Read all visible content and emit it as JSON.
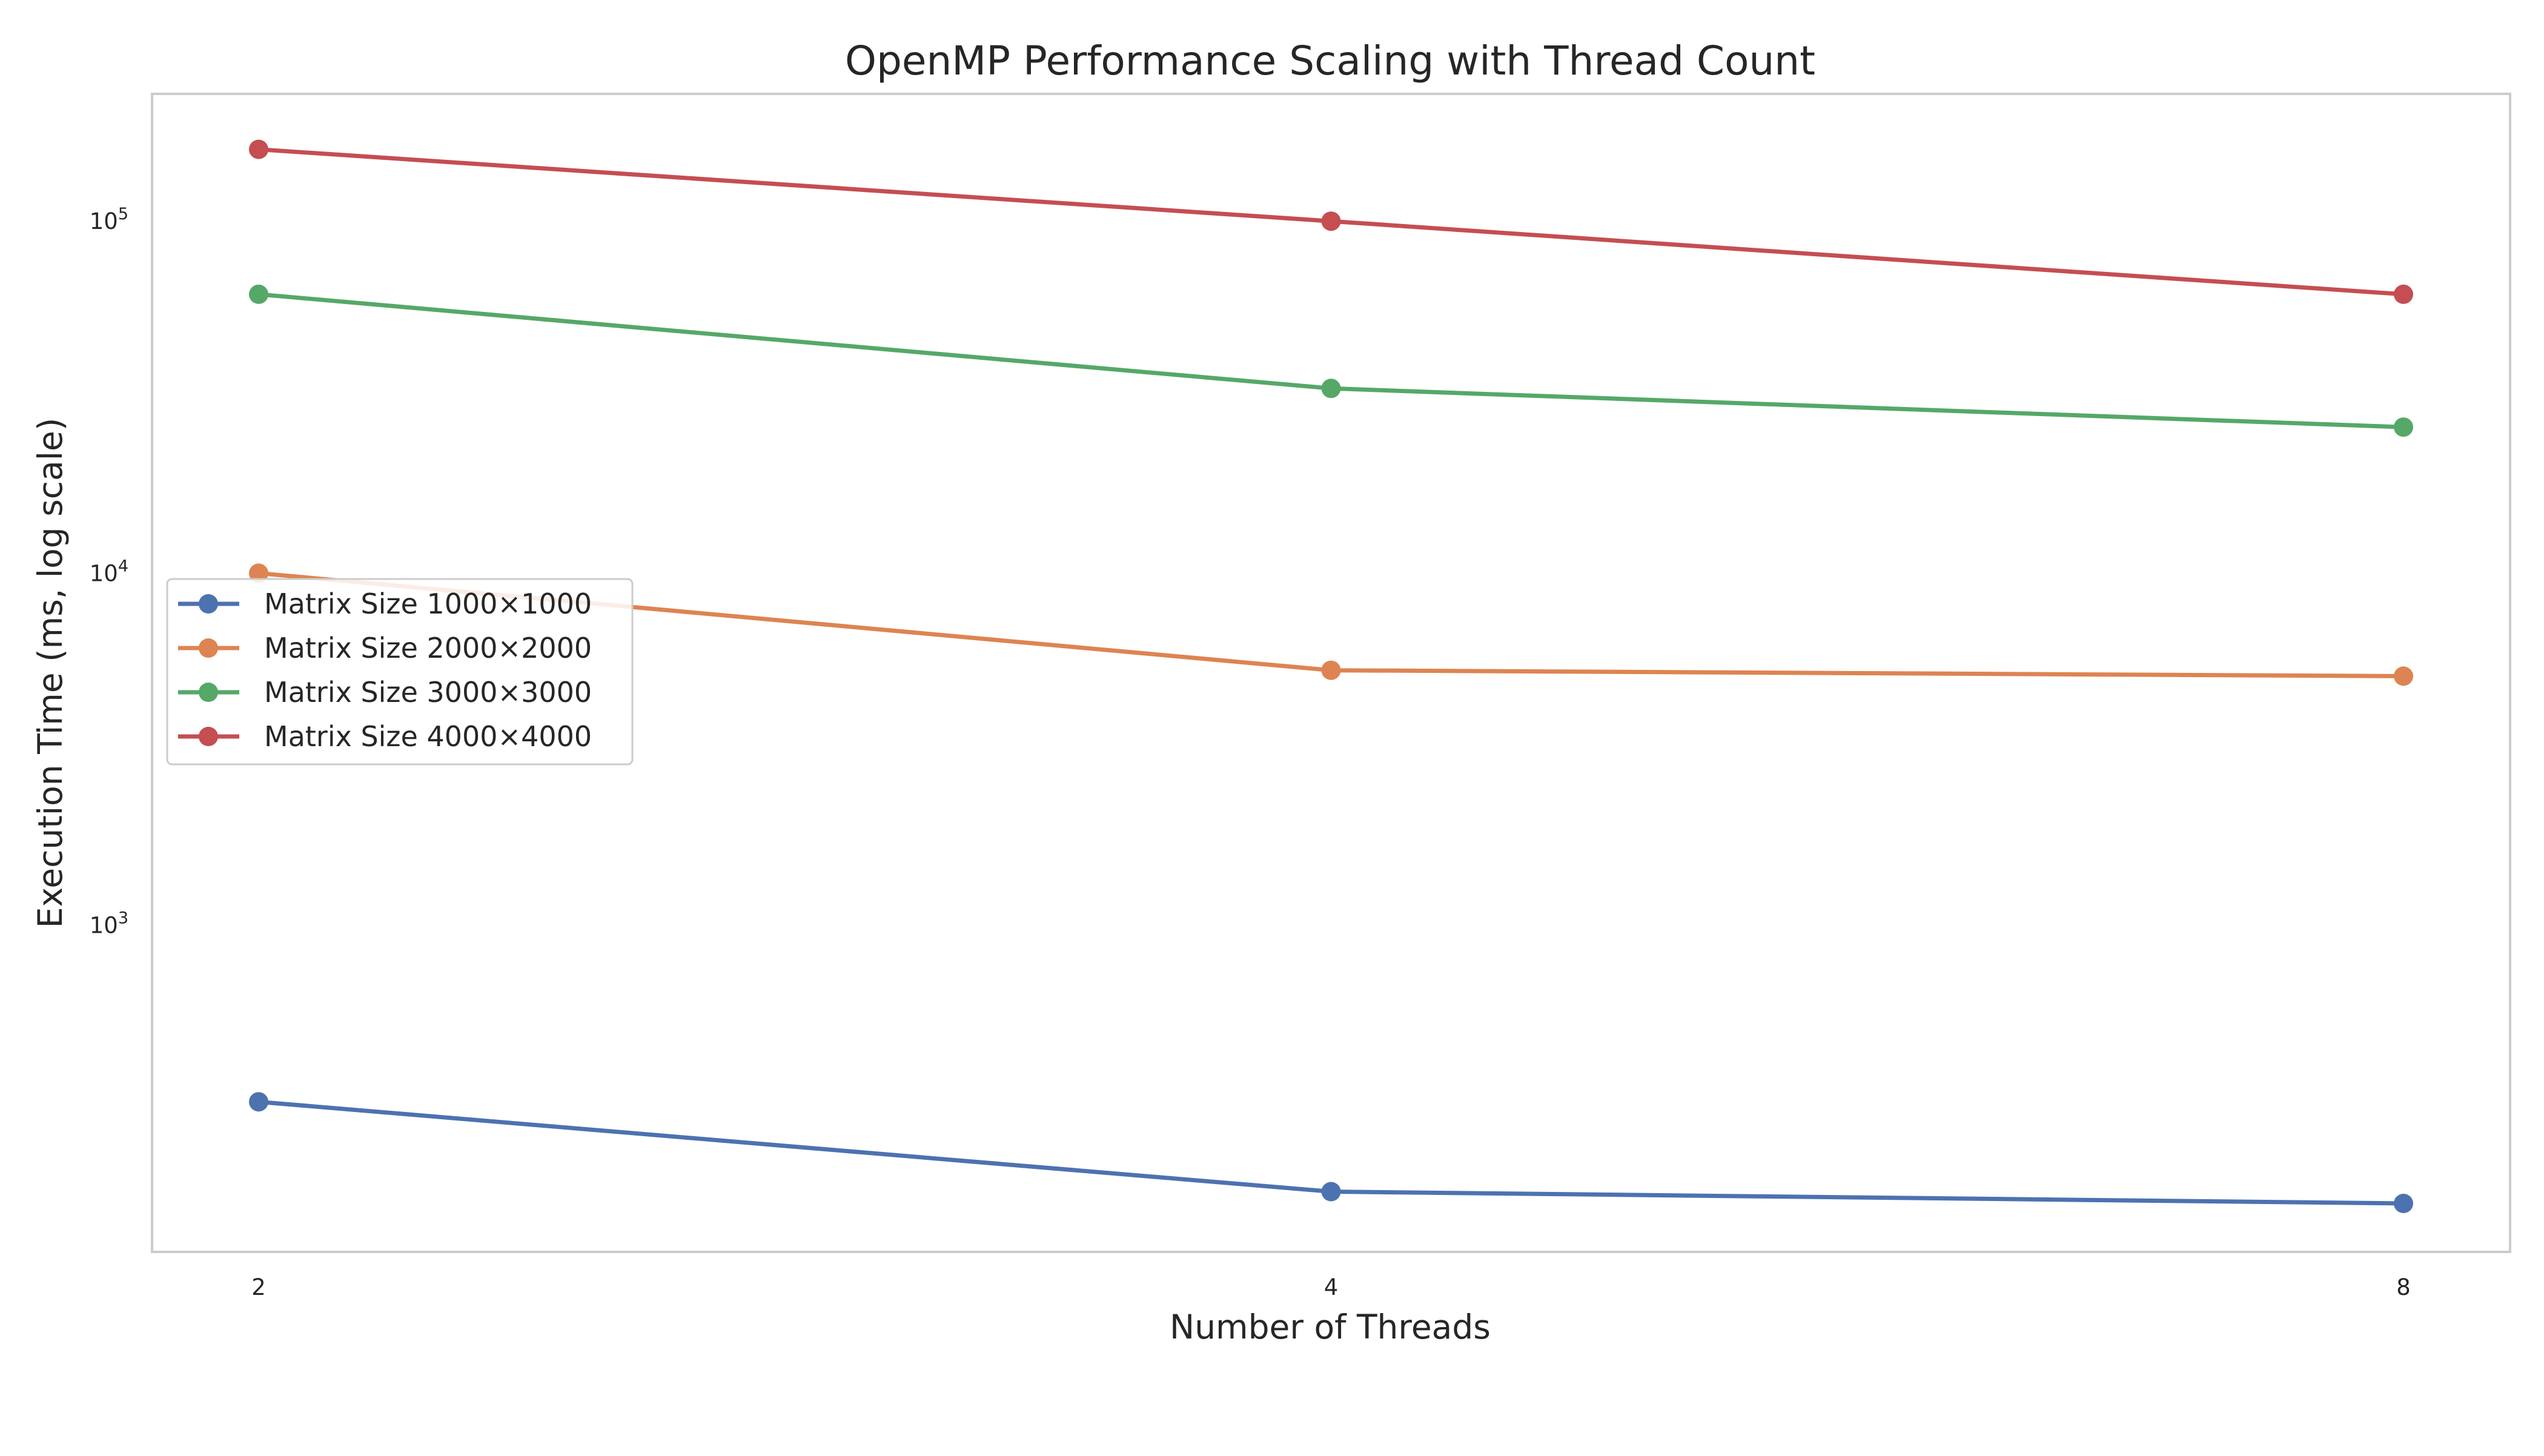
{
  "chart_data": {
    "type": "line",
    "title": "OpenMP Performance Scaling with Thread Count",
    "xlabel": "Number of Threads",
    "ylabel": "Execution Time (ms, log scale)",
    "x": [
      2,
      4,
      8
    ],
    "x_tick_labels": [
      "2",
      "4",
      "8"
    ],
    "x_scale": "log2",
    "y_scale": "log",
    "ylim": [
      118,
      230000
    ],
    "y_ticks": [
      {
        "value": 1000,
        "base": "10",
        "exp": "3"
      },
      {
        "value": 10000,
        "base": "10",
        "exp": "4"
      },
      {
        "value": 100000,
        "base": "10",
        "exp": "5"
      }
    ],
    "grid": false,
    "legend_position": "center-left",
    "marker": "circle",
    "series": [
      {
        "name": "Matrix Size 1000×1000",
        "color": "#4c72b0",
        "values": [
          315,
          175,
          162
        ]
      },
      {
        "name": "Matrix Size 2000×2000",
        "color": "#dd8452",
        "values": [
          10000,
          5300,
          5100
        ]
      },
      {
        "name": "Matrix Size 3000×3000",
        "color": "#55a868",
        "values": [
          62000,
          33500,
          26000
        ]
      },
      {
        "name": "Matrix Size 4000×4000",
        "color": "#c44e52",
        "values": [
          160000,
          100000,
          62000
        ]
      }
    ]
  }
}
